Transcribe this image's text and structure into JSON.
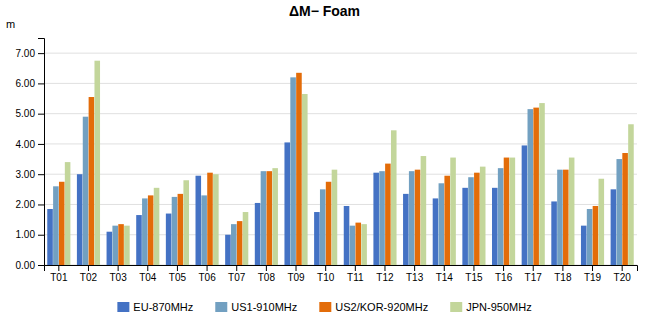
{
  "chart_data": {
    "type": "bar",
    "title": "ΔM− Foam",
    "ylabel": "m",
    "categories": [
      "T01",
      "T02",
      "T03",
      "T04",
      "T05",
      "T06",
      "T07",
      "T08",
      "T09",
      "T10",
      "T11",
      "T12",
      "T13",
      "T14",
      "T15",
      "T16",
      "T17",
      "T18",
      "T19",
      "T20"
    ],
    "series": [
      {
        "name": "EU-870MHz",
        "color": "#4472c4",
        "values": [
          1.85,
          3.0,
          1.1,
          1.65,
          1.7,
          2.95,
          1.0,
          2.05,
          4.05,
          1.75,
          1.95,
          3.05,
          2.35,
          2.2,
          2.55,
          2.55,
          3.95,
          2.1,
          1.3,
          2.5
        ]
      },
      {
        "name": "US1-910MHz",
        "color": "#72a0c1",
        "values": [
          2.6,
          4.9,
          1.3,
          2.2,
          2.25,
          2.3,
          1.35,
          3.1,
          6.2,
          2.5,
          1.3,
          3.1,
          3.1,
          2.7,
          2.9,
          3.2,
          5.15,
          3.15,
          1.85,
          3.5
        ]
      },
      {
        "name": "US2/KOR-920MHz",
        "color": "#e36c09",
        "values": [
          2.75,
          5.55,
          1.35,
          2.3,
          2.35,
          3.05,
          1.45,
          3.1,
          6.35,
          2.75,
          1.4,
          3.35,
          3.15,
          2.95,
          3.05,
          3.55,
          5.2,
          3.15,
          1.95,
          3.7
        ]
      },
      {
        "name": "JPN-950MHz",
        "color": "#c3d69b",
        "values": [
          3.4,
          6.75,
          1.3,
          2.55,
          2.8,
          3.0,
          1.75,
          3.2,
          5.65,
          3.15,
          1.35,
          4.45,
          3.6,
          3.55,
          3.25,
          3.55,
          5.35,
          3.55,
          2.85,
          4.65
        ]
      }
    ],
    "ylim": [
      0.0,
      7.5
    ],
    "yticks": [
      {
        "value": 0.0,
        "label": "0.00"
      },
      {
        "value": 1.0,
        "label": "1.00"
      },
      {
        "value": 2.0,
        "label": "2.00"
      },
      {
        "value": 3.0,
        "label": "3.00"
      },
      {
        "value": 4.0,
        "label": "4.00"
      },
      {
        "value": 5.0,
        "label": "5.00"
      },
      {
        "value": 6.0,
        "label": "6.00"
      },
      {
        "value": 7.0,
        "label": "7.00"
      }
    ],
    "grid": true,
    "legend": "bottom"
  }
}
